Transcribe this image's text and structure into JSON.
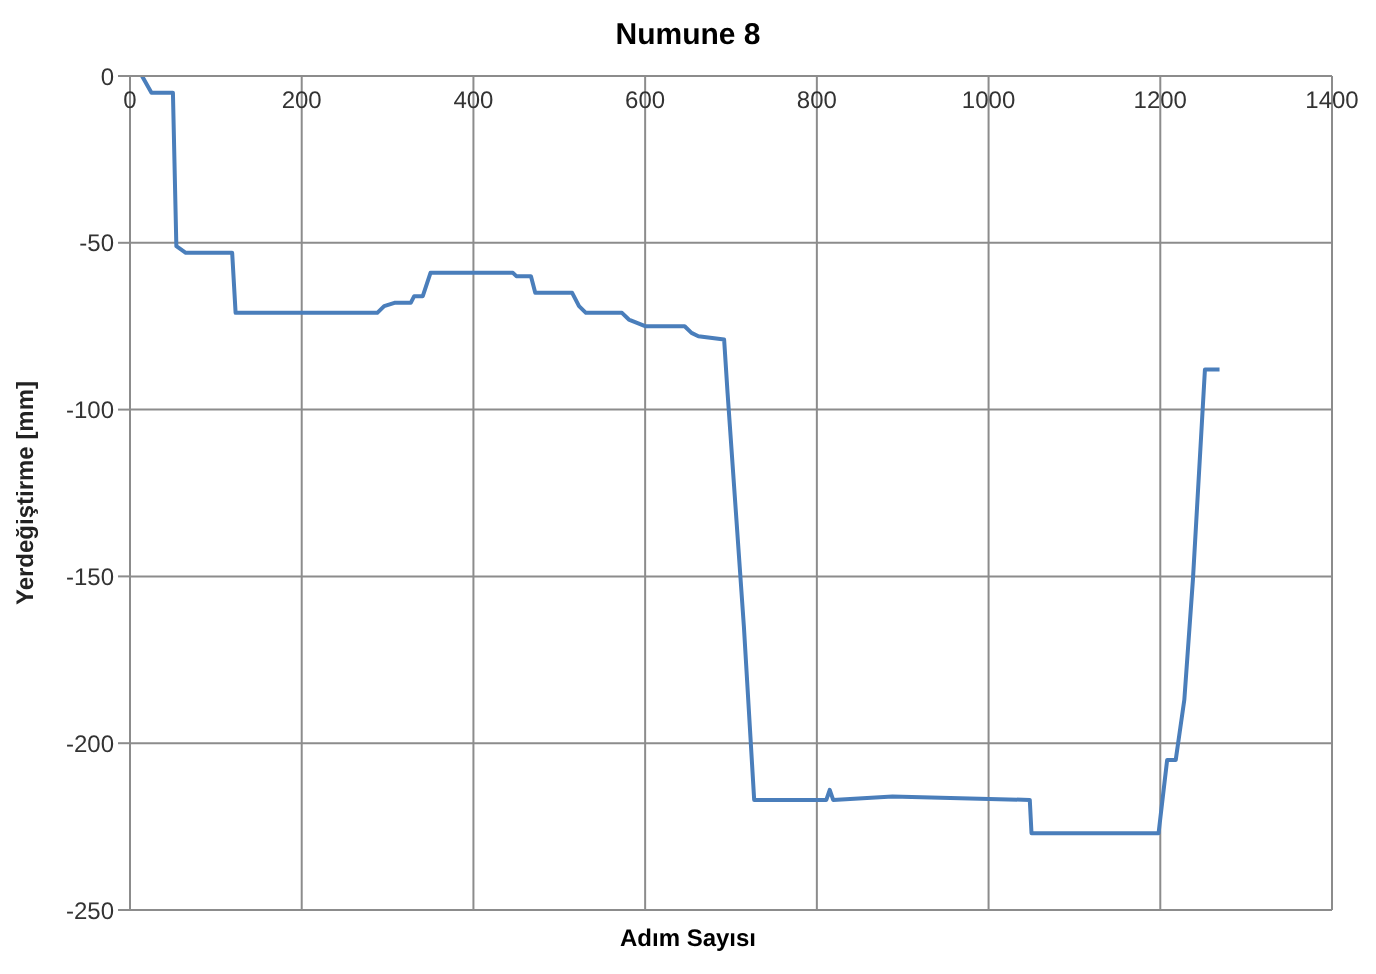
{
  "chart_data": {
    "type": "line",
    "title": "Numune 8",
    "xlabel": "Adım Sayısı",
    "ylabel": "Yerdeğiştirme  [mm]",
    "xlim": [
      0,
      1400
    ],
    "xticks": [
      0,
      200,
      400,
      600,
      800,
      1000,
      1200,
      1400
    ],
    "ylim": [
      -250,
      0
    ],
    "yticks": [
      -250,
      -200,
      -150,
      -100,
      -50,
      0
    ],
    "grid": true,
    "legend": false,
    "series": [
      {
        "color": "#4a7ebb",
        "x": [
          14,
          25,
          50,
          54,
          65,
          119,
          123,
          288,
          296,
          308,
          327,
          331,
          341,
          350,
          446,
          450,
          467,
          472,
          515,
          523,
          531,
          573,
          581,
          600,
          646,
          654,
          662,
          692,
          696,
          715,
          727,
          811,
          815,
          819,
          888,
          1048,
          1050,
          1198,
          1208,
          1218,
          1228,
          1238,
          1252,
          1269
        ],
        "values": [
          0,
          -5,
          -5,
          -51,
          -53,
          -53,
          -71,
          -71,
          -69,
          -68,
          -68,
          -66,
          -66,
          -59,
          -59,
          -60,
          -60,
          -65,
          -65,
          -69,
          -71,
          -71,
          -73,
          -75,
          -75,
          -77,
          -78,
          -79,
          -95,
          -165,
          -217,
          -217,
          -214,
          -217,
          -216,
          -217,
          -227,
          -227,
          -205,
          -205,
          -187,
          -151,
          -88,
          -88
        ]
      }
    ]
  }
}
